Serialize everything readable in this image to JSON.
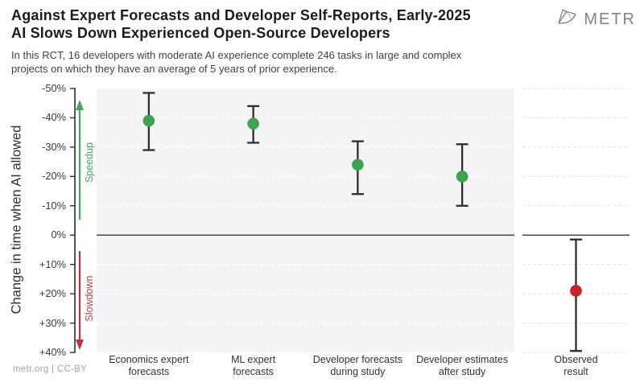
{
  "header": {
    "title_line1": "Against Expert Forecasts and Developer Self-Reports, Early-2025",
    "title_line2": "AI Slows Down Experienced Open-Source Developers",
    "subtitle_line1": "In this RCT, 16 developers with moderate AI experience complete 246 tasks in large and complex",
    "subtitle_line2": "projects on which they have an average of 5 years of prior experience.",
    "logo_text": "METR"
  },
  "footer": {
    "credit": "metr.org  |  CC-BY"
  },
  "colors": {
    "green_point": "#3CA353",
    "red_point": "#CC2127",
    "speedup": "#43A85C",
    "slowdown": "#C53B44",
    "error_bar": "#2d2d2d",
    "zero_line": "#4a4a4a",
    "axis": "#202020",
    "panel_bg": "#f4f4f4",
    "grid_on_gray": "#ffffff",
    "grid_on_white": "#e6e6e6"
  },
  "chart_data": {
    "type": "scatter",
    "title": "Against Expert Forecasts and Developer Self-Reports, Early-2025 AI Slows Down Experienced Open-Source Developers",
    "xlabel": "",
    "ylabel": "Change in time when AI allowed",
    "units": "%",
    "ylim": [
      -50,
      40
    ],
    "y_axis_inverted": true,
    "grid": true,
    "yticks": [
      {
        "value": -50,
        "label": "-50%"
      },
      {
        "value": -40,
        "label": "-40%"
      },
      {
        "value": -30,
        "label": "-30%"
      },
      {
        "value": -20,
        "label": "-20%"
      },
      {
        "value": -10,
        "label": "-10%"
      },
      {
        "value": 0,
        "label": "0%"
      },
      {
        "value": 10,
        "label": "+10%"
      },
      {
        "value": 20,
        "label": "+20%"
      },
      {
        "value": 30,
        "label": "+30%"
      },
      {
        "value": 40,
        "label": "+40%"
      }
    ],
    "annotations": [
      {
        "text": "Speedup",
        "direction": "up",
        "color": "#43A85C"
      },
      {
        "text": "Slowdown",
        "direction": "down",
        "color": "#C53B44"
      }
    ],
    "points": [
      {
        "category": "Economics expert forecasts",
        "label_lines": [
          "Economics expert",
          "forecasts"
        ],
        "value": -39,
        "ci": [
          -48.5,
          -29
        ],
        "color": "#3CA353",
        "panel": "forecasts"
      },
      {
        "category": "ML expert forecasts",
        "label_lines": [
          "ML expert",
          "forecasts"
        ],
        "value": -38,
        "ci": [
          -44,
          -31.5
        ],
        "color": "#3CA353",
        "panel": "forecasts"
      },
      {
        "category": "Developer forecasts during study",
        "label_lines": [
          "Developer forecasts",
          "during study"
        ],
        "value": -24,
        "ci": [
          -32,
          -14
        ],
        "color": "#3CA353",
        "panel": "forecasts"
      },
      {
        "category": "Developer estimates after study",
        "label_lines": [
          "Developer estimates",
          "after study"
        ],
        "value": -20,
        "ci": [
          -31,
          -10
        ],
        "color": "#3CA353",
        "panel": "forecasts"
      },
      {
        "category": "Observed result",
        "label_lines": [
          "Observed",
          "result"
        ],
        "value": 19,
        "ci": [
          1.5,
          39.5
        ],
        "color": "#CC2127",
        "panel": "observed"
      }
    ]
  }
}
